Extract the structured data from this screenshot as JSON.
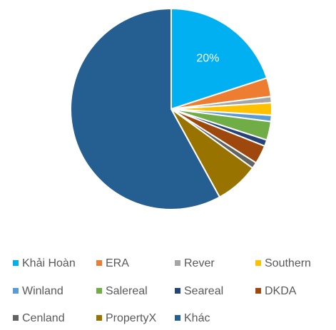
{
  "chart_data": {
    "type": "pie",
    "categories": [
      "Khải Hoàn",
      "ERA",
      "Rever",
      "Southern",
      "Winland",
      "Salereal",
      "Seareal",
      "DKDA",
      "Cenland",
      "PropertyX",
      "Khác"
    ],
    "values": [
      20,
      3,
      1,
      2,
      1,
      3,
      1,
      3,
      1,
      7,
      58
    ],
    "value_labels": [
      "20%",
      null,
      null,
      null,
      null,
      null,
      null,
      null,
      null,
      null,
      null
    ],
    "colors": [
      "#00b0f0",
      "#ed7d31",
      "#a5a5a5",
      "#ffc000",
      "#5b9bd5",
      "#70ad47",
      "#264478",
      "#9e480e",
      "#636363",
      "#997300",
      "#255e91"
    ],
    "legend": "bottom"
  }
}
